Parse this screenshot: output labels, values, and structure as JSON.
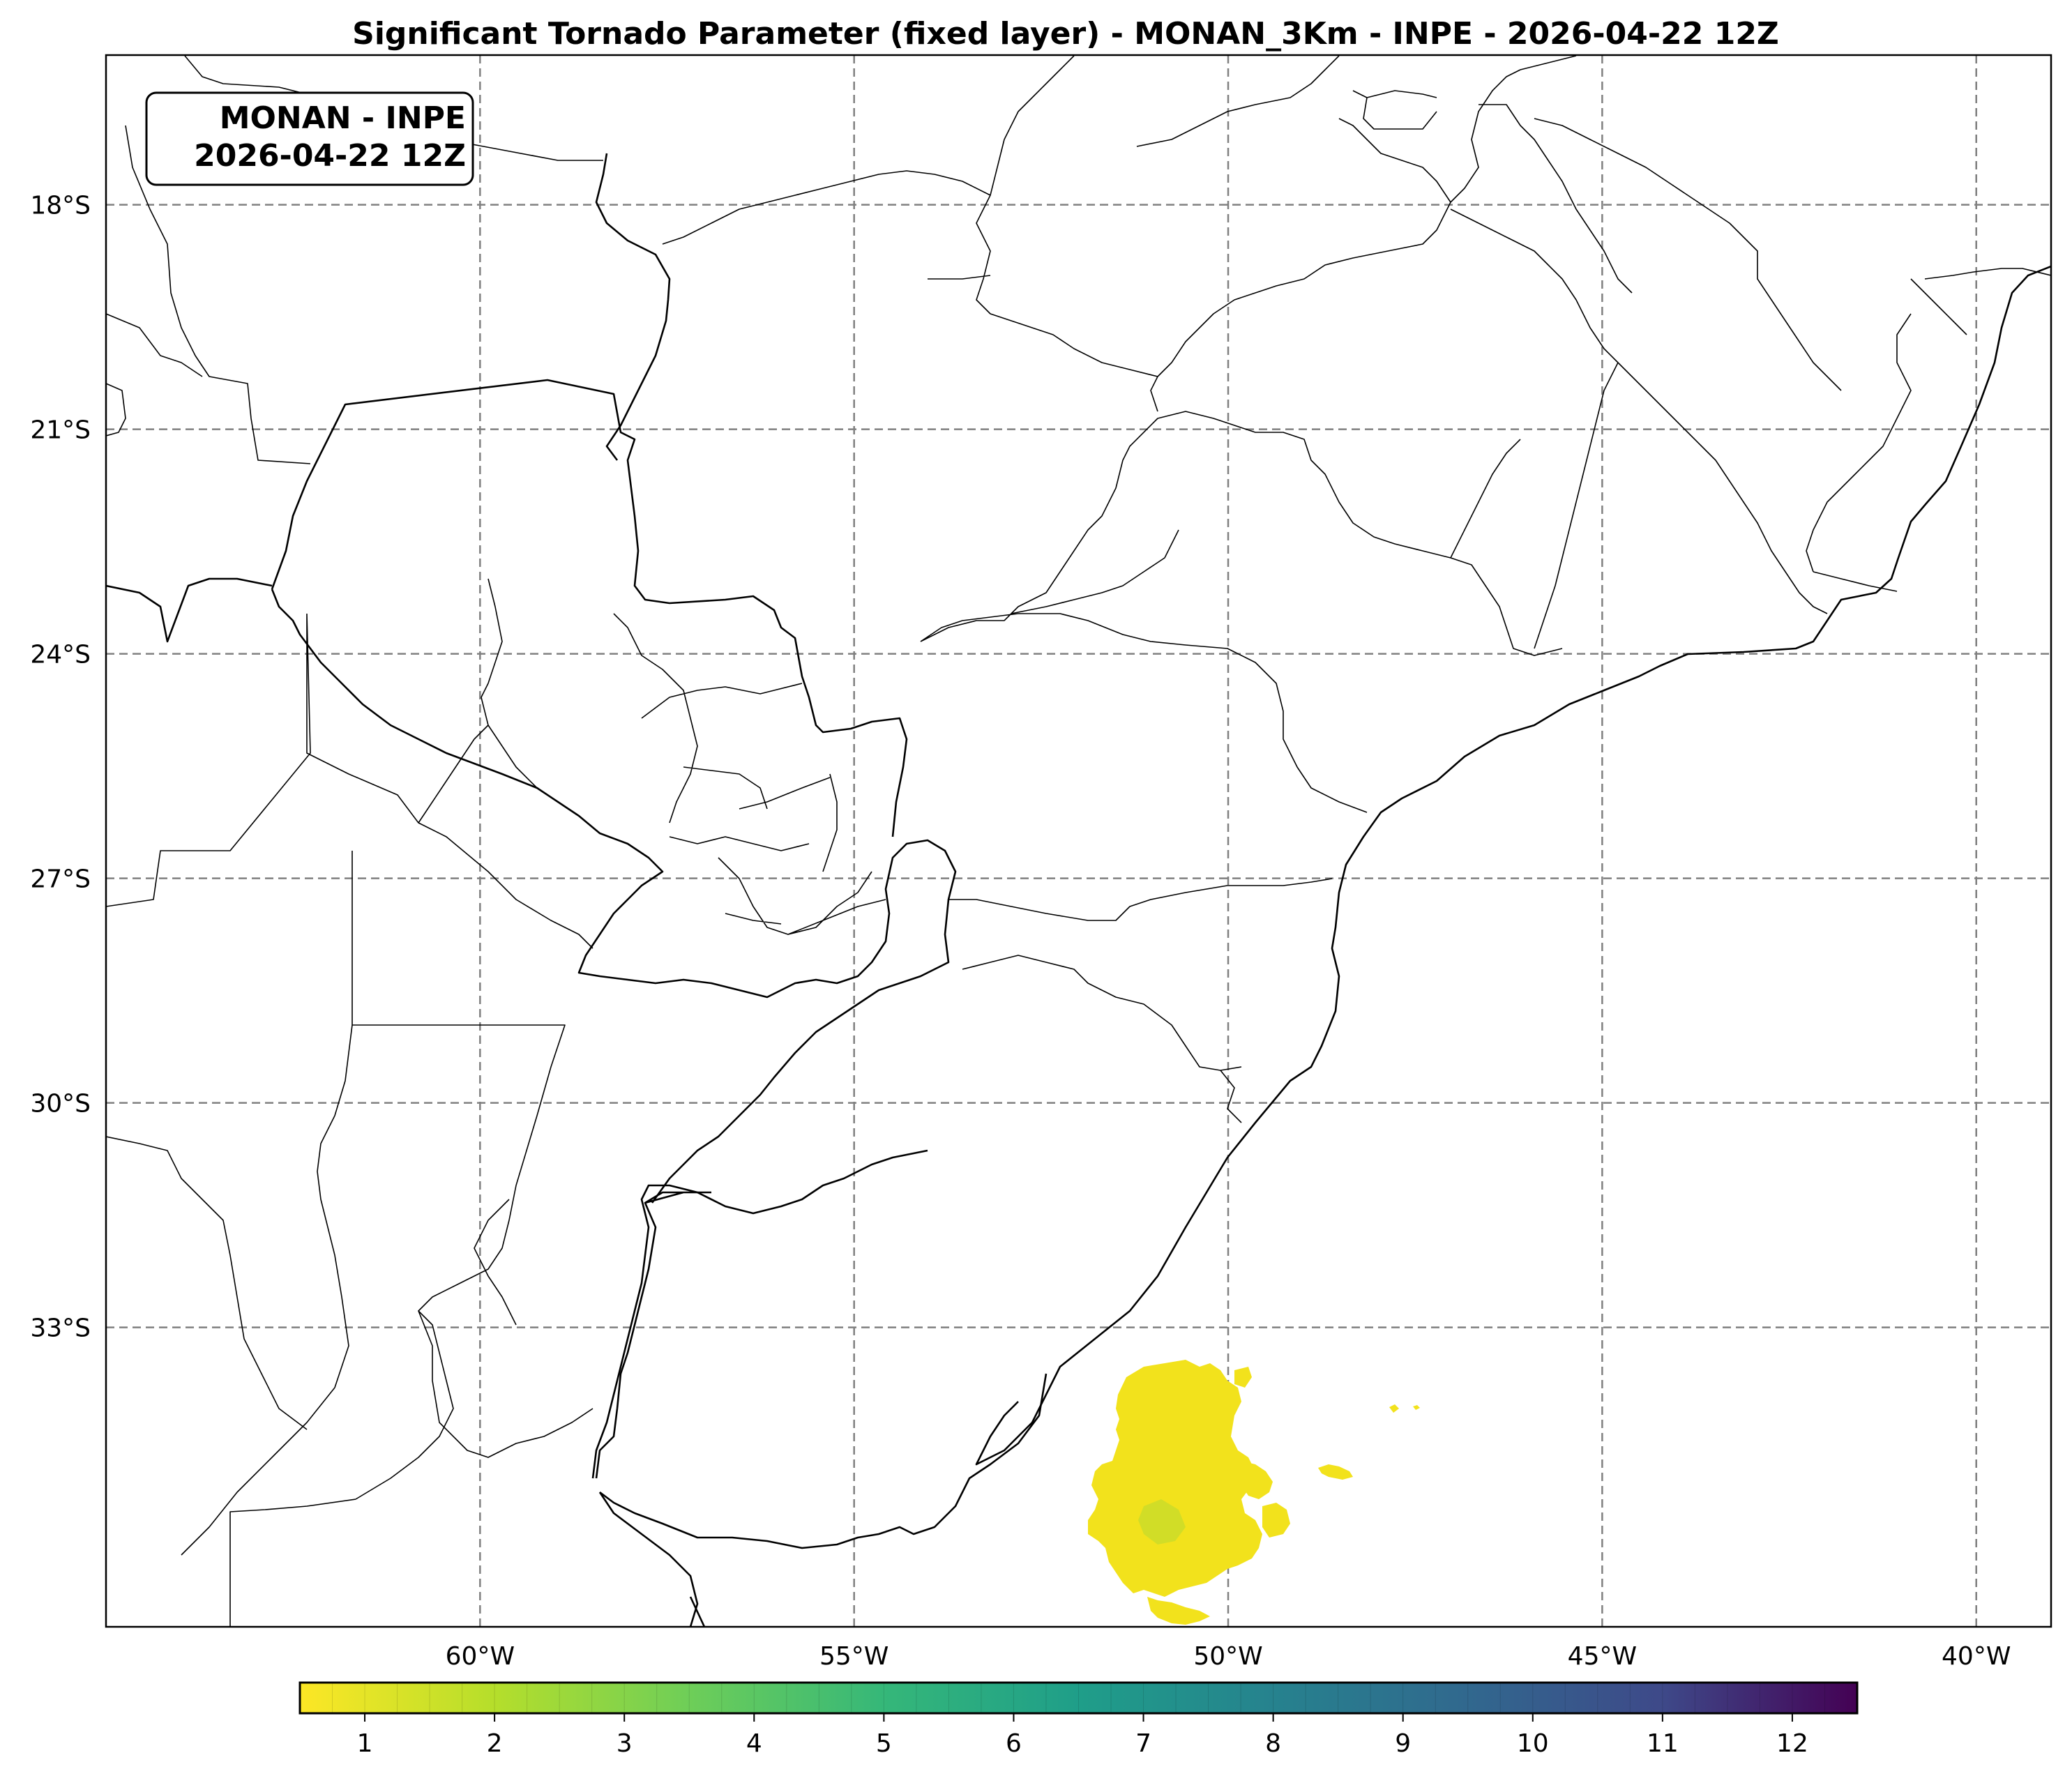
{
  "map": {
    "title": "Significant Tornado Parameter (fixed layer) - MONAN_3Km - INPE - 2026-04-22 12Z",
    "badge": {
      "line1": "MONAN - INPE",
      "line2": "2026-04-22 12Z"
    },
    "lon_range": [
      -65,
      -39
    ],
    "lat_range": [
      -37,
      -16
    ],
    "lon_ticks": [
      {
        "value": -60,
        "label": "60°W"
      },
      {
        "value": -55,
        "label": "55°W"
      },
      {
        "value": -50,
        "label": "50°W"
      },
      {
        "value": -45,
        "label": "45°W"
      },
      {
        "value": -40,
        "label": "40°W"
      }
    ],
    "lat_ticks": [
      {
        "value": -18,
        "label": "18°S"
      },
      {
        "value": -21,
        "label": "21°S"
      },
      {
        "value": -24,
        "label": "24°S"
      },
      {
        "value": -27,
        "label": "27°S"
      },
      {
        "value": -30,
        "label": "30°S"
      },
      {
        "value": -33,
        "label": "33°S"
      }
    ],
    "gridlines": "dashed",
    "colorbar": {
      "colormap": "viridis_r",
      "min": 0.5,
      "max": 12.5,
      "ticks": [
        "1",
        "2",
        "3",
        "4",
        "5",
        "6",
        "7",
        "8",
        "9",
        "10",
        "11",
        "12"
      ],
      "placement": "bottom"
    },
    "field_colors": {
      "low": "#f2e21c",
      "mid": "#c8dc2a",
      "patch": "#9dd43a"
    }
  }
}
